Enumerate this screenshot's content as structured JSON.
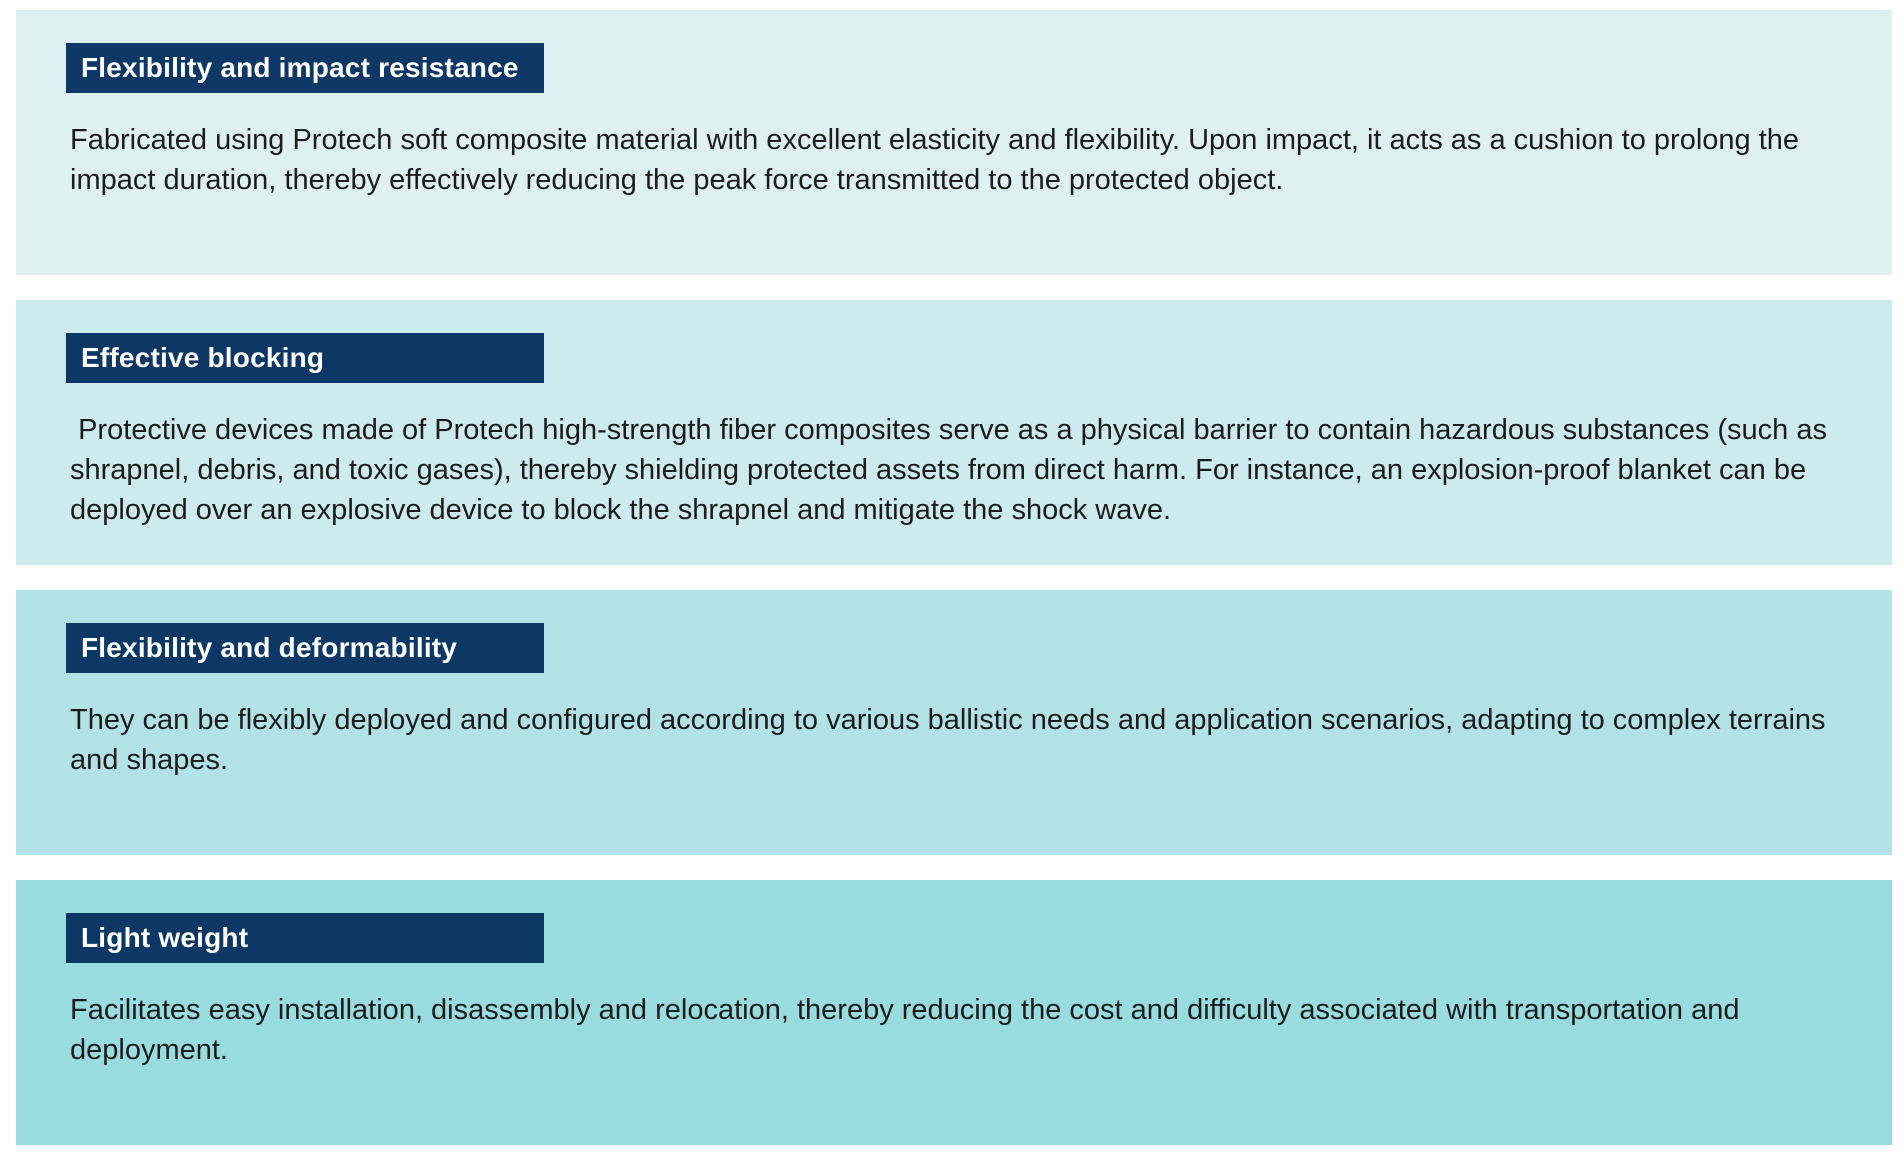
{
  "page": {
    "background": "#ffffff",
    "badge_color": "#0d3765",
    "badge_text_color": "#ffffff",
    "body_text_color": "#1c1c1c"
  },
  "sections": [
    {
      "title": "Flexibility and impact resistance",
      "body": "Fabricated using Protech soft composite material with excellent elasticity and flexibility. Upon impact, it acts as a cushion to prolong the impact duration, thereby effectively reducing the peak force transmitted to the protected object.",
      "background": "#dff0f2"
    },
    {
      "title": "Effective blocking",
      "body": " Protective devices made of Protech high-strength fiber composites serve as a physical barrier to contain hazardous substances (such as shrapnel, debris, and toxic gases), thereby shielding protected assets from direct harm. For instance, an explosion-proof blanket can be deployed over an explosive device to block the shrapnel and mitigate the shock wave.",
      "background": "#cdeaee"
    },
    {
      "title": "Flexibility and deformability",
      "body": "They can be flexibly deployed and configured according to various ballistic needs and application scenarios, adapting to complex terrains and shapes.",
      "background": "#b3e2e6"
    },
    {
      "title": "Light weight",
      "body": "Facilitates easy installation, disassembly and relocation, thereby reducing the cost and difficulty associated with transportation and deployment.",
      "background": "#99dcdf"
    }
  ]
}
